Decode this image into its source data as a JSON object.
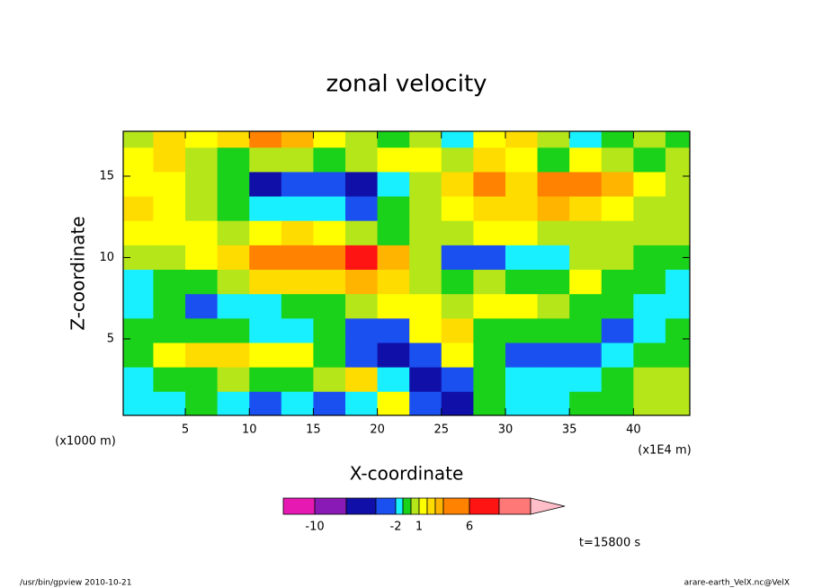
{
  "chart_data": {
    "type": "contour",
    "title": "zonal velocity",
    "xlabel": "X-coordinate",
    "ylabel": "Z-coordinate",
    "xunit": "(x1E4 m)",
    "yunit": "(x1000 m)",
    "xlim": [
      0.15,
      44.4
    ],
    "ylim": [
      0.3,
      17.76
    ],
    "xticks": [
      5,
      10,
      15,
      20,
      25,
      30,
      35,
      40
    ],
    "yticks": [
      5,
      10,
      15
    ],
    "x": [
      1.25,
      3.75,
      6.25,
      8.75,
      11.25,
      13.75,
      16.25,
      18.75,
      21.25,
      23.75,
      26.25,
      28.75,
      31.25,
      33.75,
      36.25,
      38.75,
      41.25,
      43.75
    ],
    "y": [
      17.5,
      16,
      14.5,
      13,
      11.5,
      10,
      8.5,
      7,
      5.5,
      4,
      2.5,
      1
    ],
    "z": [
      [
        0.5,
        2,
        1.5,
        2,
        4,
        3,
        1.5,
        0.5,
        -0.5,
        0.5,
        -2,
        1,
        2,
        0.5,
        -1.5,
        -0.5,
        0.5,
        -0.5
      ],
      [
        1,
        2,
        0.5,
        -0.5,
        0,
        0,
        -0.5,
        0.5,
        1.5,
        1,
        0.5,
        2,
        1,
        -0.5,
        1,
        0.5,
        -0.5,
        0.5
      ],
      [
        1.5,
        1.5,
        0.5,
        -1,
        -4.5,
        -3,
        -3.5,
        -4.5,
        -2,
        0.5,
        2,
        4,
        2,
        4.5,
        4.5,
        3,
        1,
        0.5
      ],
      [
        2.5,
        1.5,
        0.5,
        -0.5,
        -2,
        -2,
        -1.5,
        -2.5,
        -1,
        0.5,
        1.5,
        2.5,
        2,
        3,
        2,
        1,
        0.5,
        0.5
      ],
      [
        1.5,
        1.5,
        1,
        0.5,
        1.5,
        2,
        1,
        0.5,
        -1,
        0.5,
        0.5,
        1,
        1,
        0.5,
        0.5,
        0.5,
        0.5,
        0.5
      ],
      [
        0,
        0.5,
        1,
        2,
        4.5,
        4.5,
        5,
        6.5,
        3,
        0,
        -2.5,
        -2.5,
        -2,
        -1.5,
        0,
        0,
        -0.5,
        -0.5
      ],
      [
        -1.5,
        -1,
        -0.5,
        0.5,
        2,
        2,
        2,
        3.5,
        2.5,
        0.5,
        -0.5,
        0,
        -0.5,
        -0.5,
        1,
        -0.5,
        -1,
        -1.5
      ],
      [
        -1.5,
        -1,
        -4,
        -1.5,
        -1.5,
        -1,
        -0.5,
        0.5,
        1,
        1,
        0.5,
        1,
        1.5,
        0.5,
        -0.5,
        -1,
        -1.5,
        -1.5
      ],
      [
        -0.5,
        -0.5,
        -0.5,
        -1,
        -1.5,
        -1.5,
        -1,
        -2.5,
        -4,
        1,
        2,
        -1,
        -1,
        -1,
        -1,
        -3,
        -1.5,
        -1
      ],
      [
        -0.5,
        1,
        2,
        2,
        1.5,
        1,
        -0.5,
        -2.5,
        -4.5,
        -2.5,
        1,
        -1,
        -2.5,
        -3,
        -3,
        -1.5,
        -1,
        -1
      ],
      [
        -1.5,
        -1,
        -0.5,
        0,
        -0.5,
        -1,
        0,
        2,
        -1.5,
        -6,
        -4,
        -0.5,
        -1.5,
        -1.5,
        -1.5,
        -0.5,
        0,
        0
      ],
      [
        -2,
        -1.5,
        -1,
        -1.5,
        -3,
        -2,
        -3,
        -2,
        1,
        -2.5,
        -5,
        -1,
        -1.5,
        -1.5,
        -0.5,
        -0.5,
        0,
        0
      ]
    ],
    "levels": [
      -10,
      -6,
      -4,
      -2,
      -1,
      0,
      1,
      2,
      3,
      4,
      6,
      8,
      10
    ],
    "colors": [
      "#e619b3",
      "#8a1ab5",
      "#1010a8",
      "#1a50f0",
      "#19f0ff",
      "#1ad21a",
      "#b4e61a",
      "#ffff00",
      "#ffdc00",
      "#ffb400",
      "#ff8200",
      "#ff1414",
      "#ff7878",
      "#ffbec8"
    ],
    "colorbar_ticks": [
      -10,
      -2,
      1,
      6
    ],
    "time_label": "t=15800 s",
    "footer_left": "/usr/bin/gpview  2010-10-21",
    "footer_right": "arare-earth_VelX.nc@VelX"
  }
}
